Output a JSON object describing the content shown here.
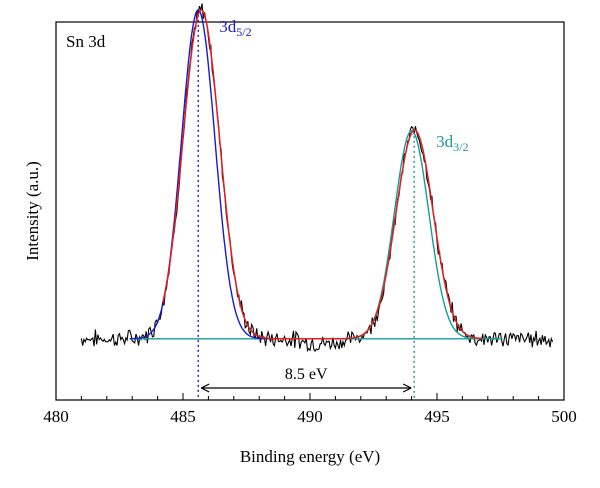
{
  "chart_data": {
    "type": "line",
    "panel_label": "Sn 3d",
    "xlabel": "Binding energy (eV)",
    "ylabel": "Intensity (a.u.)",
    "xlim": [
      480,
      500
    ],
    "ylim": [
      0,
      1
    ],
    "x_ticks": [
      "480",
      "485",
      "490",
      "495",
      "500"
    ],
    "grid": false,
    "annotations": {
      "peak1_main": "3d",
      "peak1_sub": "5/2",
      "peak2_main": "3d",
      "peak2_sub": "3/2",
      "separation": "8.5 eV"
    },
    "peak_positions": [
      485.6,
      494.1
    ],
    "separation_ev": 8.5,
    "colors": {
      "raw": "#000000",
      "envelope": "#e02020",
      "fit_3d52": "#1a1acc",
      "fit_3d32": "#1a9a9a",
      "baseline": "#1a9a9a",
      "dotted_3d52": "#1a1acc",
      "dotted_3d32": "#1a9a9a",
      "arrow": "#000000"
    },
    "series": [
      {
        "role": "raw",
        "x_range": [
          481.0,
          499.6
        ],
        "baseline": 0.162,
        "noise": 0.018
      },
      {
        "role": "fit_3d52",
        "center": 485.6,
        "fwhm": 1.55,
        "height": 0.87,
        "baseline": 0.162,
        "x_range": [
          482.9,
          489.0
        ]
      },
      {
        "role": "fit_3d32",
        "center": 494.0,
        "fwhm": 1.6,
        "height": 0.55,
        "baseline": 0.162,
        "x_range": [
          489.0,
          497.5
        ]
      },
      {
        "role": "envelope",
        "peaks": [
          {
            "center": 485.72,
            "fwhm": 1.7,
            "height": 0.87
          },
          {
            "center": 494.12,
            "fwhm": 1.72,
            "height": 0.552
          }
        ],
        "baseline": 0.162,
        "x_range": [
          484.2,
          496.8
        ]
      },
      {
        "role": "baseline",
        "x_range": [
          482.9,
          497.6
        ],
        "y": 0.162
      }
    ]
  }
}
